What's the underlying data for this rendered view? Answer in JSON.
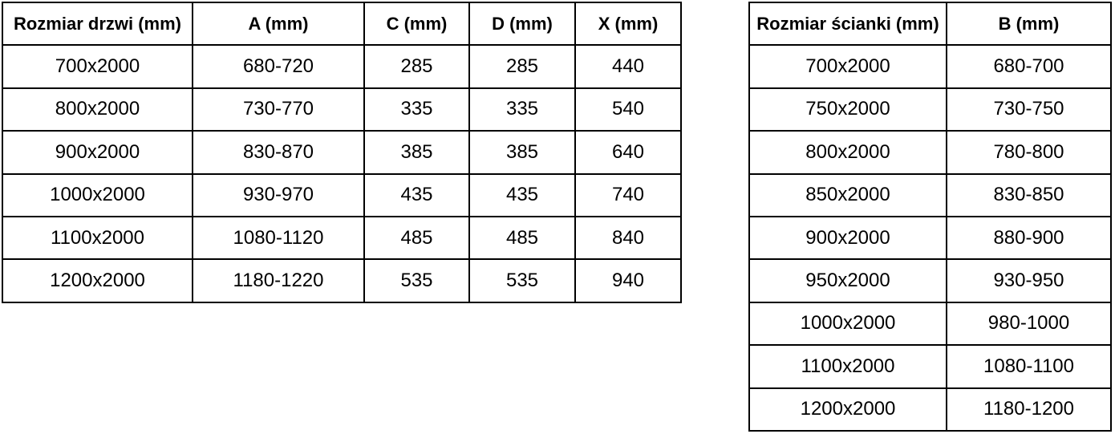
{
  "colors": {
    "background": "#ffffff",
    "border": "#000000",
    "text": "#000000"
  },
  "tables": [
    {
      "name": "door-sizes",
      "headers": [
        "Rozmiar drzwi (mm)",
        "A (mm)",
        "C (mm)",
        "D (mm)",
        "X (mm)"
      ],
      "rows": [
        [
          "700x2000",
          "680-720",
          "285",
          "285",
          "440"
        ],
        [
          "800x2000",
          "730-770",
          "335",
          "335",
          "540"
        ],
        [
          "900x2000",
          "830-870",
          "385",
          "385",
          "640"
        ],
        [
          "1000x2000",
          "930-970",
          "435",
          "435",
          "740"
        ],
        [
          "1100x2000",
          "1080-1120",
          "485",
          "485",
          "840"
        ],
        [
          "1200x2000",
          "1180-1220",
          "535",
          "535",
          "940"
        ]
      ]
    },
    {
      "name": "wall-panel-sizes",
      "headers": [
        "Rozmiar ścianki (mm)",
        "B (mm)"
      ],
      "rows": [
        [
          "700x2000",
          "680-700"
        ],
        [
          "750x2000",
          "730-750"
        ],
        [
          "800x2000",
          "780-800"
        ],
        [
          "850x2000",
          "830-850"
        ],
        [
          "900x2000",
          "880-900"
        ],
        [
          "950x2000",
          "930-950"
        ],
        [
          "1000x2000",
          "980-1000"
        ],
        [
          "1100x2000",
          "1080-1100"
        ],
        [
          "1200x2000",
          "1180-1200"
        ]
      ]
    }
  ]
}
